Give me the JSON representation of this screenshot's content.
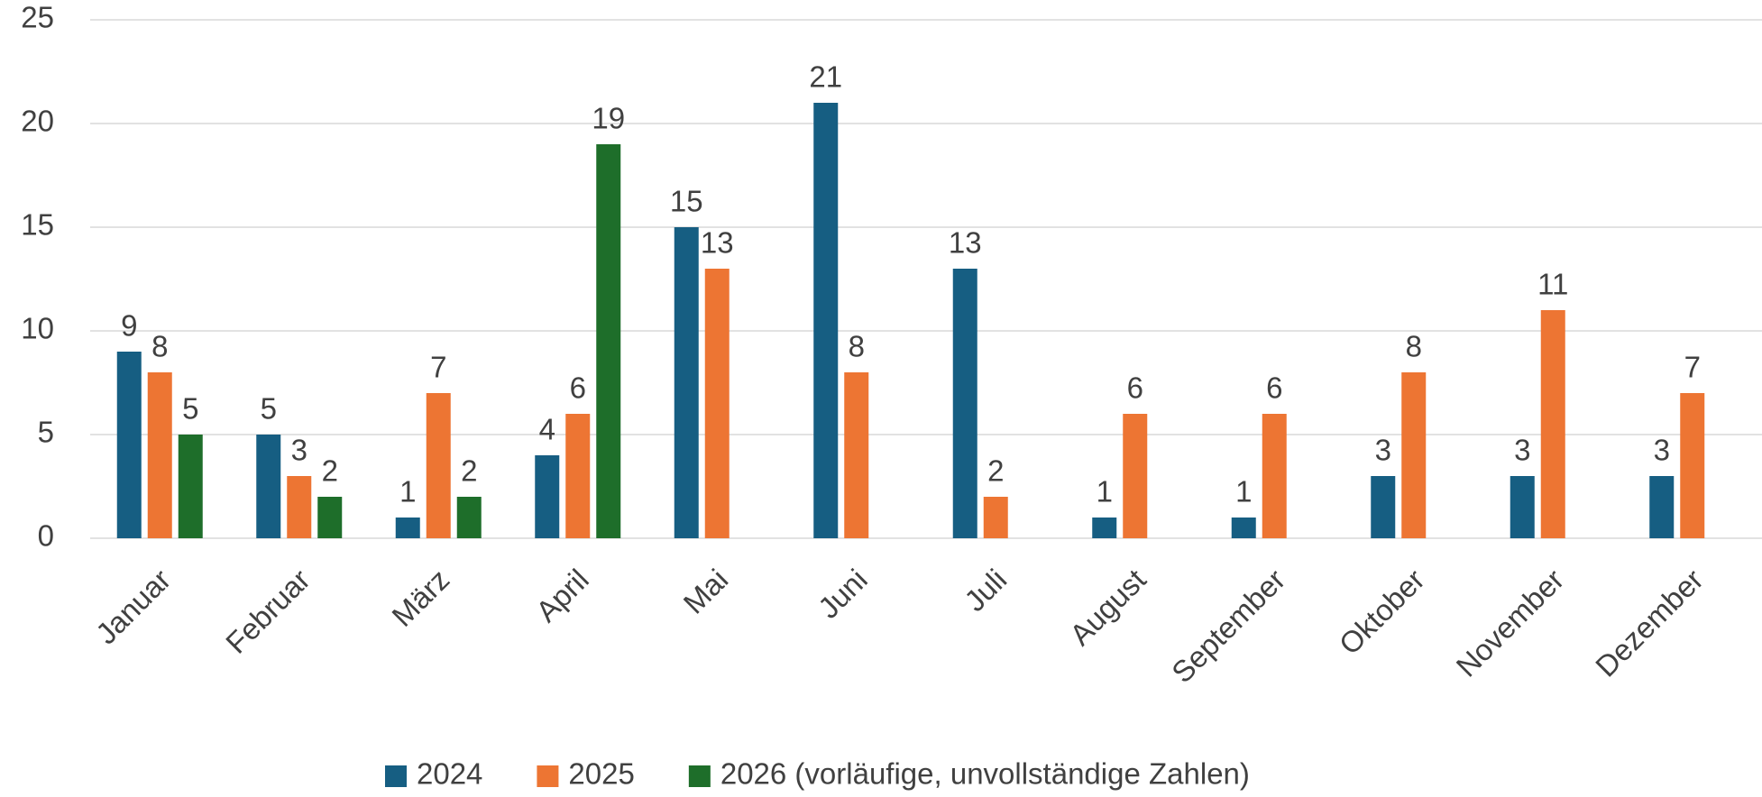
{
  "chart_data": {
    "type": "bar",
    "categories": [
      "Januar",
      "Februar",
      "März",
      "April",
      "Mai",
      "Juni",
      "Juli",
      "August",
      "September",
      "Oktober",
      "November",
      "Dezember"
    ],
    "series": [
      {
        "name": "2024",
        "color": "#165e82",
        "values": [
          9,
          5,
          1,
          4,
          15,
          21,
          13,
          1,
          1,
          3,
          3,
          3
        ]
      },
      {
        "name": "2025",
        "color": "#ed7533",
        "values": [
          8,
          3,
          7,
          6,
          13,
          8,
          2,
          6,
          6,
          8,
          11,
          7
        ]
      },
      {
        "name": "2026 (vorläufige, unvollständige Zahlen)",
        "color": "#1e6e2a",
        "values": [
          5,
          2,
          2,
          19,
          null,
          null,
          null,
          null,
          null,
          null,
          null,
          null
        ]
      }
    ],
    "ylim": [
      0,
      25
    ],
    "yticks": [
      0,
      5,
      10,
      15,
      20,
      25
    ],
    "grid": true,
    "legend": "bottom"
  }
}
